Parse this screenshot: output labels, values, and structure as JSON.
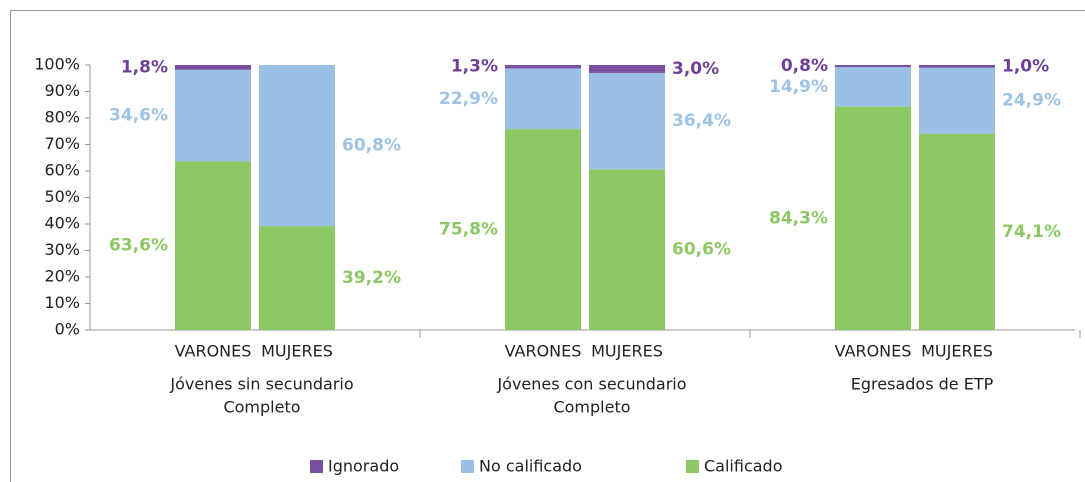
{
  "chart_data": {
    "type": "stacked_bar",
    "categories": [
      "VARONES",
      "MUJERES",
      "VARONES",
      "MUJERES",
      "VARONES",
      "MUJERES"
    ],
    "groups": [
      {
        "label": [
          "Jóvenes sin secundario",
          "Completo"
        ]
      },
      {
        "label": [
          "Jóvenes con secundario",
          "Completo"
        ]
      },
      {
        "label": [
          "Egresados de ETP"
        ]
      }
    ],
    "series": [
      {
        "name": "Ignorado",
        "color": "#7b4fa0",
        "values": [
          1.8,
          null,
          1.3,
          3.0,
          0.8,
          1.0
        ],
        "value_labels": [
          "1,8%",
          null,
          "1,3%",
          "3,0%",
          "0,8%",
          "1,0%"
        ]
      },
      {
        "name": "No calificado",
        "color": "#9bc0e6",
        "values": [
          34.6,
          60.8,
          22.9,
          36.4,
          14.9,
          24.9
        ],
        "value_labels": [
          "34,6%",
          "60,8%",
          "22,9%",
          "36,4%",
          "14,9%",
          "24,9%"
        ]
      },
      {
        "name": "Calificado",
        "color": "#8cc863",
        "values": [
          63.6,
          39.2,
          75.8,
          60.6,
          84.3,
          74.1
        ],
        "value_labels": [
          "63,6%",
          "39,2%",
          "75,8%",
          "60,6%",
          "84,3%",
          "74,1%"
        ]
      }
    ],
    "ylim": [
      0,
      100
    ],
    "yticks": [
      {
        "value": 0,
        "label": "0%"
      },
      {
        "value": 10,
        "label": "10%"
      },
      {
        "value": 20,
        "label": "20%"
      },
      {
        "value": 30,
        "label": "30%"
      },
      {
        "value": 40,
        "label": "40%"
      },
      {
        "value": 50,
        "label": "50%"
      },
      {
        "value": 60,
        "label": "60%"
      },
      {
        "value": 70,
        "label": "70%"
      },
      {
        "value": 80,
        "label": "80%"
      },
      {
        "value": 90,
        "label": "90%"
      },
      {
        "value": 100,
        "label": "100%"
      }
    ],
    "legend": "bottom"
  }
}
